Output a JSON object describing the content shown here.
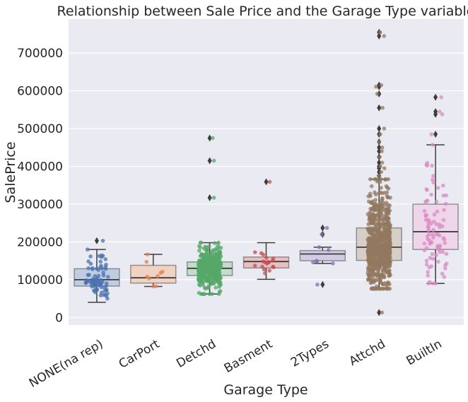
{
  "chart_data": {
    "type": "box",
    "title": "Relationship between Sale Price and the Garage Type variable",
    "xlabel": "Garage Type",
    "ylabel": "SalePrice",
    "ylim": [
      -20000,
      790000
    ],
    "yticks": [
      0,
      100000,
      200000,
      300000,
      400000,
      500000,
      600000,
      700000
    ],
    "ytick_labels": [
      "0",
      "100000",
      "200000",
      "300000",
      "400000",
      "500000",
      "600000",
      "700000"
    ],
    "grid": "horizontal",
    "background": "#eaeaf2",
    "categories": [
      "NONE(na rep)",
      "CarPort",
      "Detchd",
      "Basment",
      "2Types",
      "Attchd",
      "BuiltIn"
    ],
    "colors": [
      "#4c72b0",
      "#dd8452",
      "#55a868",
      "#c44e52",
      "#8172b3",
      "#937860",
      "#da8bc3"
    ],
    "boxes": [
      {
        "category": "NONE(na rep)",
        "whisker_low": 40000,
        "q1": 83000,
        "median": 100000,
        "q3": 129000,
        "whisker_high": 180000,
        "outliers": [
          203000
        ],
        "points": 81
      },
      {
        "category": "CarPort",
        "whisker_low": 82000,
        "q1": 91000,
        "median": 105000,
        "q3": 138000,
        "whisker_high": 167000,
        "outliers": [],
        "points": 9
      },
      {
        "category": "Detchd",
        "whisker_low": 62000,
        "q1": 111000,
        "median": 130000,
        "q3": 147000,
        "whisker_high": 198000,
        "outliers": [
          475000,
          415000,
          317000
        ],
        "points": 387
      },
      {
        "category": "Basment",
        "whisker_low": 101000,
        "q1": 131000,
        "median": 148000,
        "q3": 160000,
        "whisker_high": 198000,
        "outliers": [
          359000
        ],
        "points": 19
      },
      {
        "category": "2Types",
        "whisker_low": 143000,
        "q1": 150000,
        "median": 168000,
        "q3": 177000,
        "whisker_high": 186000,
        "outliers": [
          237000,
          220000,
          87000
        ],
        "points": 6
      },
      {
        "category": "Attchd",
        "whisker_low": 76000,
        "q1": 151000,
        "median": 186000,
        "q3": 237000,
        "whisker_high": 366000,
        "outliers": [
          755000,
          745000,
          615000,
          611000,
          592000,
          555000,
          500000,
          485000,
          465000,
          450000,
          440000,
          425000,
          410000,
          400000,
          395000,
          385000,
          375000,
          13000
        ],
        "points": 870
      },
      {
        "category": "BuiltIn",
        "whisker_low": 90000,
        "q1": 180000,
        "median": 227000,
        "q3": 300000,
        "whisker_high": 457000,
        "outliers": [
          583000,
          545000,
          538000,
          485000
        ],
        "points": 88
      }
    ]
  }
}
